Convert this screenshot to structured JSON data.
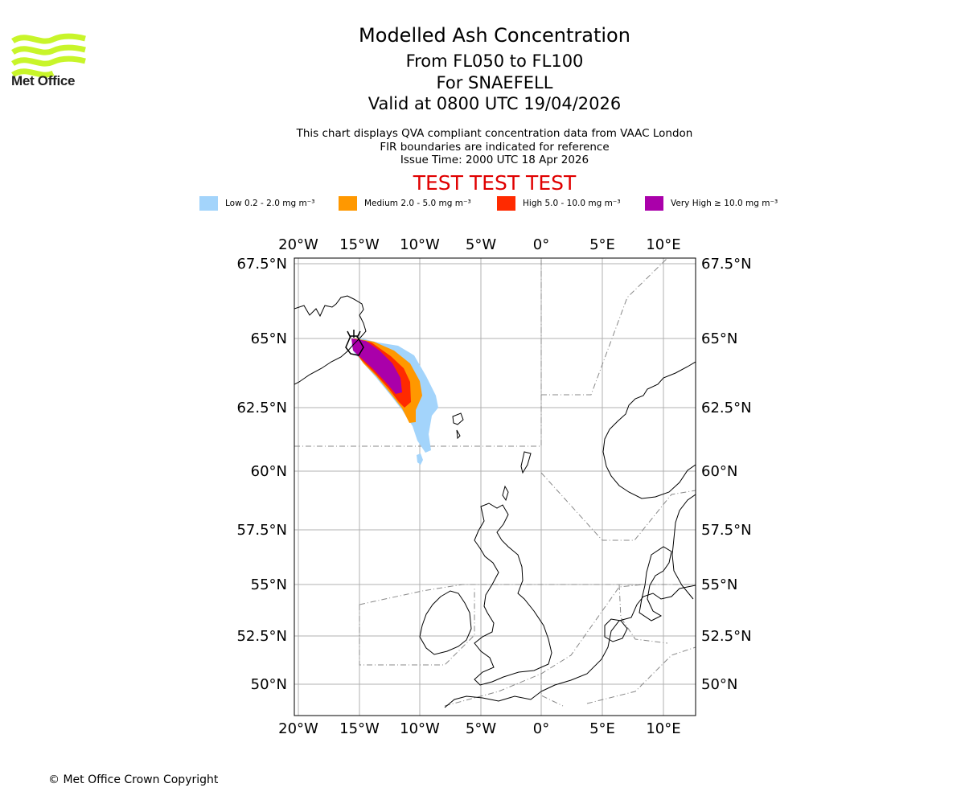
{
  "header": {
    "logo_text": "Met Office",
    "title": "Modelled Ash Concentration",
    "level_range": "From FL050 to FL100",
    "volcano": "For SNAEFELL",
    "valid_time": "Valid at 0800 UTC 19/04/2026"
  },
  "notes": {
    "line1": "This chart displays QVA compliant concentration data from VAAC London",
    "line2": "FIR boundaries are indicated for reference",
    "issue_time": "Issue Time: 2000 UTC 18 Apr 2026"
  },
  "test_banner": "TEST TEST TEST",
  "legend": [
    {
      "label": "Low 0.2 - 2.0 mg m⁻³",
      "color": "#a3d4fb"
    },
    {
      "label": "Medium 2.0 - 5.0 mg m⁻³",
      "color": "#ff9800"
    },
    {
      "label": "High 5.0 - 10.0 mg m⁻³",
      "color": "#ff2a00"
    },
    {
      "label": "Very High ≥ 10.0 mg m⁻³",
      "color": "#aa00aa"
    }
  ],
  "map": {
    "lon_labels": [
      "20°W",
      "15°W",
      "10°W",
      "5°W",
      "0°",
      "5°E",
      "10°E"
    ],
    "lat_labels": [
      "67.5°N",
      "65°N",
      "62.5°N",
      "60°N",
      "57.5°N",
      "55°N",
      "52.5°N",
      "50°N"
    ]
  },
  "footer": {
    "copyright": "© Met Office Crown Copyright"
  }
}
